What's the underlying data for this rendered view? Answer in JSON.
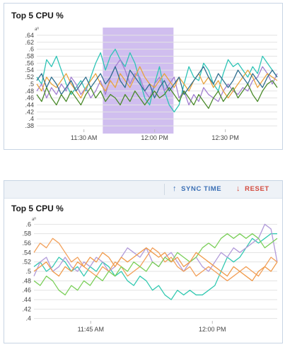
{
  "panels": [
    {
      "title": "Top 5 CPU %",
      "unit": "aᴿ"
    },
    {
      "title": "Top 5 CPU %",
      "unit": "aᴿ",
      "toolbar": {
        "sync_time_label": "SYNC TIME",
        "reset_label": "RESET",
        "sync_icon": "arrow-up-icon",
        "reset_icon": "arrow-down-icon"
      }
    }
  ],
  "colors": {
    "series": [
      "#2ec4b6",
      "#a27fd1",
      "#e8a33d",
      "#2f6f8f",
      "#4a8a2a"
    ],
    "series_bottom": [
      "#33c9b1",
      "#b19ad9",
      "#f2a05a",
      "#7bcf5a",
      "#f09a4a"
    ],
    "selection": "#b79be6",
    "grid": "#e3e3e3",
    "accent": "#3a6fb5",
    "reset": "#d44b3f"
  },
  "chart_data": [
    {
      "type": "line",
      "title": "Top 5 CPU %",
      "y_ticks": [
        ".64",
        ".62",
        ".6",
        ".58",
        ".56",
        ".54",
        ".52",
        ".5",
        ".48",
        ".46",
        ".44",
        ".42",
        ".4",
        ".38"
      ],
      "ylim": [
        0.37,
        0.65
      ],
      "x_ticks": [
        "11:30 AM",
        "12:00 PM",
        "12:30 PM"
      ],
      "x_tick_minutes": [
        690,
        720,
        750
      ],
      "xlim": [
        670,
        772
      ],
      "selection_minutes": [
        698,
        728
      ],
      "series": [
        {
          "values": [
            0.52,
            0.5,
            0.57,
            0.55,
            0.58,
            0.54,
            0.5,
            0.47,
            0.49,
            0.51,
            0.48,
            0.52,
            0.56,
            0.59,
            0.54,
            0.58,
            0.6,
            0.57,
            0.55,
            0.59,
            0.56,
            0.51,
            0.46,
            0.44,
            0.5,
            0.55,
            0.48,
            0.44,
            0.42,
            0.44,
            0.5,
            0.55,
            0.52,
            0.51,
            0.56,
            0.54,
            0.5,
            0.48,
            0.53,
            0.57,
            0.55,
            0.56,
            0.54,
            0.52,
            0.55,
            0.53,
            0.58,
            0.56,
            0.54,
            0.52
          ]
        },
        {
          "values": [
            0.48,
            0.5,
            0.46,
            0.49,
            0.47,
            0.5,
            0.48,
            0.52,
            0.5,
            0.47,
            0.49,
            0.46,
            0.48,
            0.51,
            0.47,
            0.52,
            0.55,
            0.57,
            0.54,
            0.5,
            0.53,
            0.52,
            0.48,
            0.46,
            0.5,
            0.52,
            0.48,
            0.5,
            0.52,
            0.46,
            0.48,
            0.44,
            0.47,
            0.45,
            0.49,
            0.47,
            0.46,
            0.45,
            0.48,
            0.5,
            0.48,
            0.47,
            0.49,
            0.48,
            0.51,
            0.52,
            0.55,
            0.53,
            0.5,
            0.53
          ]
        },
        {
          "values": [
            0.5,
            0.48,
            0.52,
            0.5,
            0.49,
            0.51,
            0.53,
            0.5,
            0.48,
            0.46,
            0.49,
            0.51,
            0.53,
            0.5,
            0.48,
            0.51,
            0.49,
            0.53,
            0.51,
            0.49,
            0.52,
            0.55,
            0.52,
            0.5,
            0.49,
            0.51,
            0.53,
            0.51,
            0.49,
            0.52,
            0.5,
            0.48,
            0.51,
            0.53,
            0.5,
            0.52,
            0.49,
            0.51,
            0.48,
            0.46,
            0.48,
            0.5,
            0.52,
            0.54,
            0.52,
            0.49,
            0.51,
            0.53,
            0.52,
            0.51
          ]
        },
        {
          "values": [
            0.51,
            0.53,
            0.49,
            0.52,
            0.5,
            0.47,
            0.49,
            0.51,
            0.48,
            0.5,
            0.52,
            0.49,
            0.51,
            0.53,
            0.5,
            0.52,
            0.55,
            0.51,
            0.49,
            0.54,
            0.52,
            0.5,
            0.48,
            0.5,
            0.46,
            0.49,
            0.51,
            0.48,
            0.5,
            0.52,
            0.47,
            0.49,
            0.51,
            0.53,
            0.55,
            0.52,
            0.5,
            0.53,
            0.51,
            0.49,
            0.51,
            0.54,
            0.52,
            0.5,
            0.53,
            0.51,
            0.49,
            0.52,
            0.54,
            0.52
          ]
        },
        {
          "values": [
            0.47,
            0.45,
            0.49,
            0.46,
            0.44,
            0.47,
            0.45,
            0.48,
            0.46,
            0.44,
            0.47,
            0.49,
            0.46,
            0.48,
            0.45,
            0.47,
            0.46,
            0.44,
            0.47,
            0.45,
            0.48,
            0.46,
            0.44,
            0.46,
            0.48,
            0.46,
            0.47,
            0.49,
            0.47,
            0.45,
            0.48,
            0.46,
            0.44,
            0.47,
            0.45,
            0.43,
            0.46,
            0.48,
            0.45,
            0.47,
            0.49,
            0.46,
            0.48,
            0.5,
            0.47,
            0.45,
            0.48,
            0.5,
            0.51,
            0.49
          ]
        }
      ]
    },
    {
      "type": "line",
      "title": "Top 5 CPU %",
      "y_ticks": [
        ".6",
        ".58",
        ".56",
        ".54",
        ".52",
        ".5",
        ".48",
        ".46",
        ".44",
        ".42",
        ".4"
      ],
      "ylim": [
        0.395,
        0.605
      ],
      "x_ticks": [
        "11:45 AM",
        "12:00 PM"
      ],
      "x_tick_minutes": [
        705,
        720
      ],
      "xlim": [
        698,
        728
      ],
      "series": [
        {
          "values": [
            0.51,
            0.52,
            0.5,
            0.51,
            0.53,
            0.52,
            0.5,
            0.51,
            0.49,
            0.51,
            0.5,
            0.52,
            0.51,
            0.49,
            0.5,
            0.48,
            0.47,
            0.49,
            0.48,
            0.46,
            0.47,
            0.45,
            0.44,
            0.46,
            0.45,
            0.46,
            0.45,
            0.45,
            0.46,
            0.47,
            0.5,
            0.53,
            0.52,
            0.53,
            0.55,
            0.57,
            0.56,
            0.57,
            0.58,
            0.58
          ]
        },
        {
          "values": [
            0.49,
            0.52,
            0.53,
            0.5,
            0.51,
            0.53,
            0.51,
            0.5,
            0.52,
            0.51,
            0.53,
            0.52,
            0.5,
            0.51,
            0.53,
            0.55,
            0.54,
            0.53,
            0.55,
            0.52,
            0.51,
            0.53,
            0.54,
            0.52,
            0.5,
            0.52,
            0.53,
            0.51,
            0.5,
            0.52,
            0.54,
            0.53,
            0.55,
            0.54,
            0.55,
            0.56,
            0.57,
            0.6,
            0.59,
            0.52
          ]
        },
        {
          "values": [
            0.54,
            0.56,
            0.55,
            0.57,
            0.56,
            0.54,
            0.52,
            0.53,
            0.51,
            0.5,
            0.49,
            0.51,
            0.5,
            0.52,
            0.51,
            0.49,
            0.5,
            0.51,
            0.53,
            0.55,
            0.54,
            0.52,
            0.53,
            0.51,
            0.5,
            0.51,
            0.49,
            0.5,
            0.51,
            0.5,
            0.49,
            0.48,
            0.49,
            0.5,
            0.51,
            0.5,
            0.49,
            0.51,
            0.53,
            0.52
          ]
        },
        {
          "values": [
            0.48,
            0.47,
            0.49,
            0.48,
            0.46,
            0.45,
            0.47,
            0.46,
            0.48,
            0.47,
            0.49,
            0.48,
            0.5,
            0.49,
            0.51,
            0.5,
            0.52,
            0.51,
            0.5,
            0.52,
            0.51,
            0.53,
            0.52,
            0.54,
            0.53,
            0.52,
            0.53,
            0.55,
            0.56,
            0.55,
            0.57,
            0.58,
            0.57,
            0.58,
            0.57,
            0.58,
            0.57,
            0.55,
            0.56,
            0.57
          ]
        },
        {
          "values": [
            0.5,
            0.51,
            0.52,
            0.5,
            0.49,
            0.51,
            0.5,
            0.52,
            0.51,
            0.53,
            0.52,
            0.54,
            0.53,
            0.51,
            0.53,
            0.52,
            0.53,
            0.54,
            0.55,
            0.54,
            0.53,
            0.54,
            0.52,
            0.53,
            0.51,
            0.52,
            0.54,
            0.53,
            0.52,
            0.51,
            0.5,
            0.49,
            0.51,
            0.5,
            0.49,
            0.48,
            0.5,
            0.51,
            0.5,
            0.52
          ]
        }
      ]
    }
  ]
}
